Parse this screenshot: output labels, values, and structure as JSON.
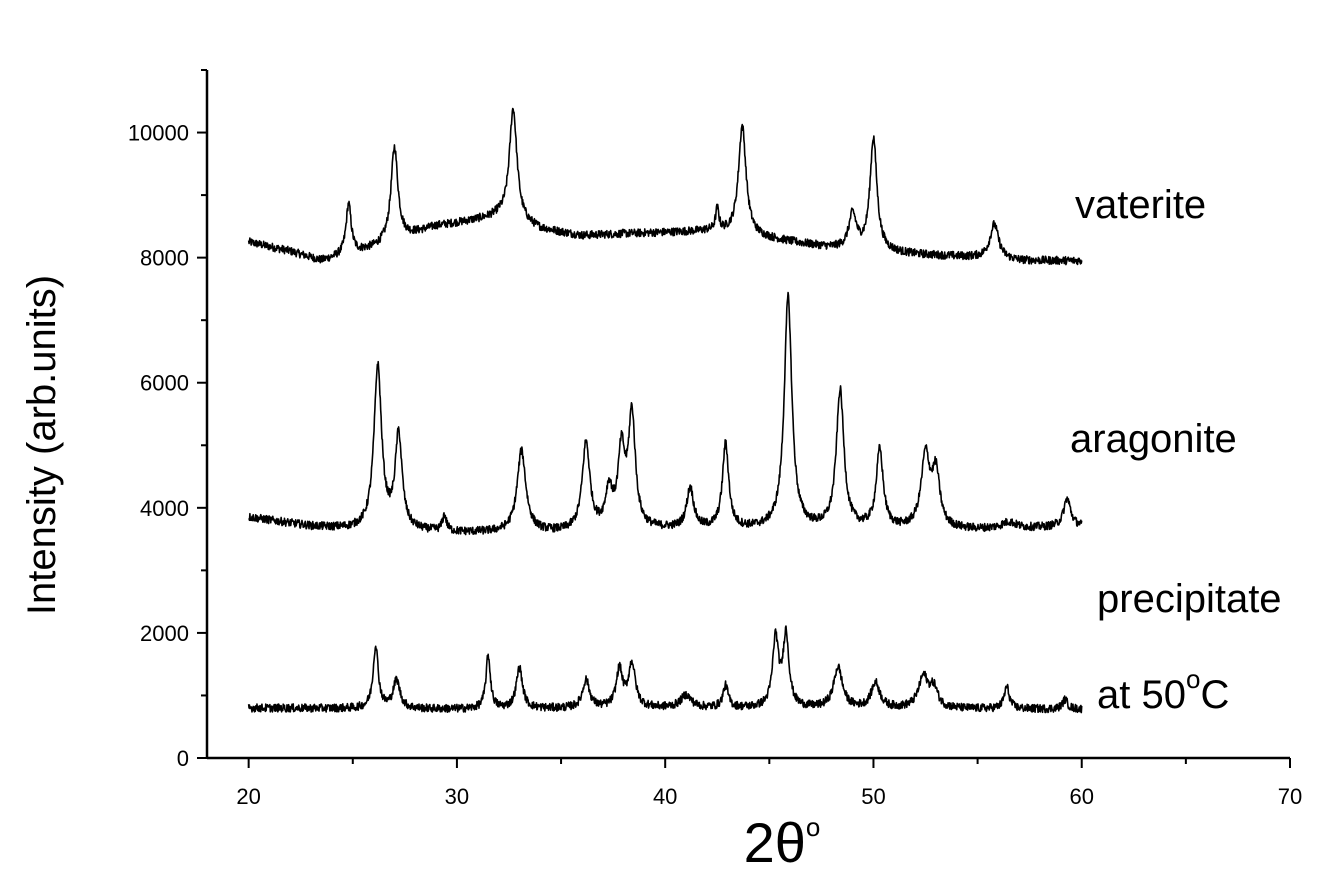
{
  "chart_data": {
    "type": "line",
    "xlabel_base": "2θ",
    "xlabel_sup": "o",
    "ylabel": "Intensity (arb.units)",
    "xlim": [
      18,
      70
    ],
    "ylim": [
      0,
      11000
    ],
    "x_ticks": [
      20,
      30,
      40,
      50,
      60,
      70
    ],
    "y_ticks": [
      0,
      2000,
      4000,
      6000,
      8000,
      10000
    ],
    "grid": false,
    "legend": "none",
    "series": [
      {
        "name": "vaterite",
        "label": "vaterite",
        "x_range": [
          20,
          60
        ],
        "baseline": [
          [
            20,
            8250
          ],
          [
            22,
            8100
          ],
          [
            23.5,
            7950
          ],
          [
            26,
            8150
          ],
          [
            29,
            8500
          ],
          [
            32,
            8650
          ],
          [
            34,
            8450
          ],
          [
            36,
            8350
          ],
          [
            38,
            8380
          ],
          [
            40,
            8400
          ],
          [
            42,
            8420
          ],
          [
            45,
            8300
          ],
          [
            48,
            8150
          ],
          [
            52,
            8050
          ],
          [
            55,
            8000
          ],
          [
            57,
            7950
          ],
          [
            60,
            7950
          ]
        ],
        "peaks": [
          [
            24.8,
            800,
            0.15
          ],
          [
            27.0,
            1500,
            0.2
          ],
          [
            32.7,
            1800,
            0.22
          ],
          [
            42.5,
            350,
            0.1
          ],
          [
            43.7,
            1750,
            0.22
          ],
          [
            49.0,
            550,
            0.22
          ],
          [
            50.0,
            1800,
            0.2
          ],
          [
            55.8,
            550,
            0.25
          ]
        ]
      },
      {
        "name": "aragonite",
        "label": "aragonite",
        "x_range": [
          20,
          60
        ],
        "baseline": [
          [
            20,
            3850
          ],
          [
            23,
            3700
          ],
          [
            25,
            3650
          ],
          [
            30,
            3600
          ],
          [
            35,
            3600
          ],
          [
            40,
            3650
          ],
          [
            45,
            3650
          ],
          [
            50,
            3650
          ],
          [
            55,
            3650
          ],
          [
            60,
            3700
          ]
        ],
        "peaks": [
          [
            26.2,
            2600,
            0.22
          ],
          [
            27.2,
            1500,
            0.2
          ],
          [
            29.4,
            250,
            0.12
          ],
          [
            33.1,
            1300,
            0.25
          ],
          [
            36.2,
            1400,
            0.22
          ],
          [
            37.3,
            600,
            0.2
          ],
          [
            37.9,
            1200,
            0.2
          ],
          [
            38.4,
            1800,
            0.2
          ],
          [
            41.2,
            650,
            0.2
          ],
          [
            42.9,
            1350,
            0.18
          ],
          [
            45.9,
            3700,
            0.22
          ],
          [
            48.4,
            2200,
            0.22
          ],
          [
            50.3,
            1250,
            0.2
          ],
          [
            52.5,
            1150,
            0.25
          ],
          [
            53.0,
            850,
            0.22
          ],
          [
            56.5,
            100,
            0.4
          ],
          [
            59.3,
            450,
            0.2
          ]
        ]
      },
      {
        "name": "precipitate at 50°C",
        "label_line1": "precipitate",
        "label_line2_base": "at 50",
        "label_line2_sup": "o",
        "label_line2_end": "C",
        "x_range": [
          20,
          60
        ],
        "baseline": [
          [
            20,
            800
          ],
          [
            30,
            780
          ],
          [
            40,
            800
          ],
          [
            50,
            790
          ],
          [
            60,
            780
          ]
        ],
        "peaks": [
          [
            26.1,
            1000,
            0.15
          ],
          [
            27.1,
            450,
            0.2
          ],
          [
            31.5,
            850,
            0.13
          ],
          [
            33.0,
            650,
            0.18
          ],
          [
            36.2,
            450,
            0.2
          ],
          [
            37.8,
            600,
            0.18
          ],
          [
            38.4,
            700,
            0.2
          ],
          [
            41.0,
            200,
            0.3
          ],
          [
            42.9,
            350,
            0.15
          ],
          [
            45.3,
            1100,
            0.17
          ],
          [
            45.8,
            1150,
            0.17
          ],
          [
            48.3,
            650,
            0.25
          ],
          [
            50.1,
            400,
            0.25
          ],
          [
            52.4,
            500,
            0.28
          ],
          [
            52.9,
            300,
            0.22
          ],
          [
            56.4,
            350,
            0.15
          ],
          [
            59.2,
            150,
            0.15
          ]
        ]
      }
    ]
  }
}
